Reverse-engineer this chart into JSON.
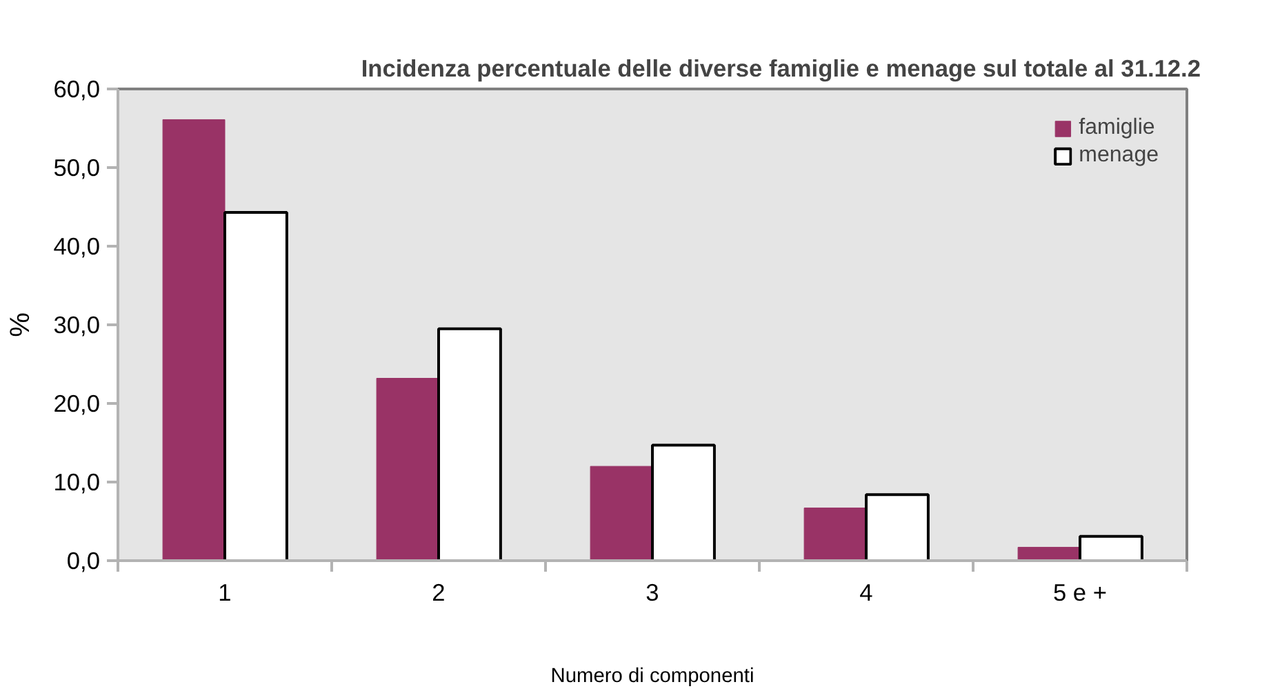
{
  "chart_data": {
    "type": "bar",
    "title": "Incidenza percentuale delle diverse famiglie e menage sul totale al 31.12.2",
    "xlabel": "Numero di componenti",
    "ylabel": "%",
    "categories": [
      "1",
      "2",
      "3",
      "4",
      "5 e +"
    ],
    "series": [
      {
        "name": "famiglie",
        "color": "#993366",
        "values": [
          56.1,
          23.2,
          12.0,
          6.7,
          1.7
        ]
      },
      {
        "name": "menage",
        "color": "#ffffff",
        "values": [
          44.3,
          29.5,
          14.7,
          8.4,
          3.1
        ]
      }
    ],
    "ylim": [
      0,
      60
    ],
    "yticks": [
      {
        "value": 0,
        "label": "0,0"
      },
      {
        "value": 10,
        "label": "10,0"
      },
      {
        "value": 20,
        "label": "20,0"
      },
      {
        "value": 30,
        "label": "30,0"
      },
      {
        "value": 40,
        "label": "40,0"
      },
      {
        "value": 50,
        "label": "50,0"
      },
      {
        "value": 60,
        "label": "60,0"
      }
    ],
    "grid": false,
    "legend": "top right"
  }
}
